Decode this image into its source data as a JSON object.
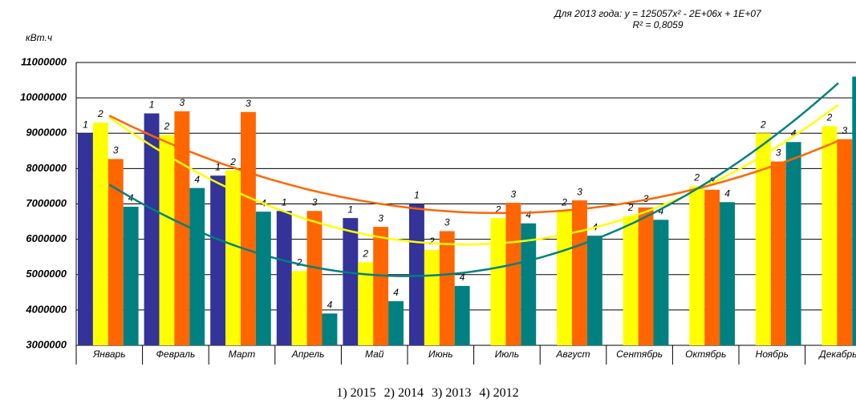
{
  "chart_data": {
    "type": "bar",
    "annotation": [
      "Для 2013 года: y = 125057x² - 2E+06x + 1E+07",
      "R² = 0,8059"
    ],
    "y_label": "кВт.ч",
    "categories": [
      "Январь",
      "Февраль",
      "Март",
      "Апрель",
      "Май",
      "Июнь",
      "Июль",
      "Август",
      "Сентябрь",
      "Октябрь",
      "Ноябрь",
      "Декабрь"
    ],
    "series": [
      {
        "name": "1) 2015",
        "label": "1",
        "color": "#333399",
        "trendline": false,
        "values": [
          9000000,
          9560000,
          7800000,
          6800000,
          6600000,
          7000000,
          null,
          null,
          null,
          null,
          null,
          null
        ]
      },
      {
        "name": "2) 2014",
        "label": "2",
        "color": "#ffff00",
        "trendline": true,
        "values": [
          9300000,
          8950000,
          7950000,
          5100000,
          5350000,
          5700000,
          6600000,
          6800000,
          6650000,
          7500000,
          9000000,
          9200000
        ]
      },
      {
        "name": "3) 2013",
        "label": "3",
        "color": "#ff6600",
        "trendline": true,
        "values": [
          8270000,
          9620000,
          9600000,
          6800000,
          6350000,
          6230000,
          7030000,
          7100000,
          6900000,
          7400000,
          8200000,
          8830000
        ]
      },
      {
        "name": "4) 2012",
        "label": "4",
        "color": "#008080",
        "trendline": true,
        "values": [
          6920000,
          7450000,
          6780000,
          3900000,
          4250000,
          4680000,
          6450000,
          6100000,
          6550000,
          7050000,
          8750000,
          10600000
        ]
      }
    ],
    "ylim": [
      3000000,
      11000000
    ],
    "yticks": [
      3000000,
      4000000,
      5000000,
      6000000,
      7000000,
      8000000,
      9000000,
      10000000,
      11000000
    ],
    "grid": true
  }
}
